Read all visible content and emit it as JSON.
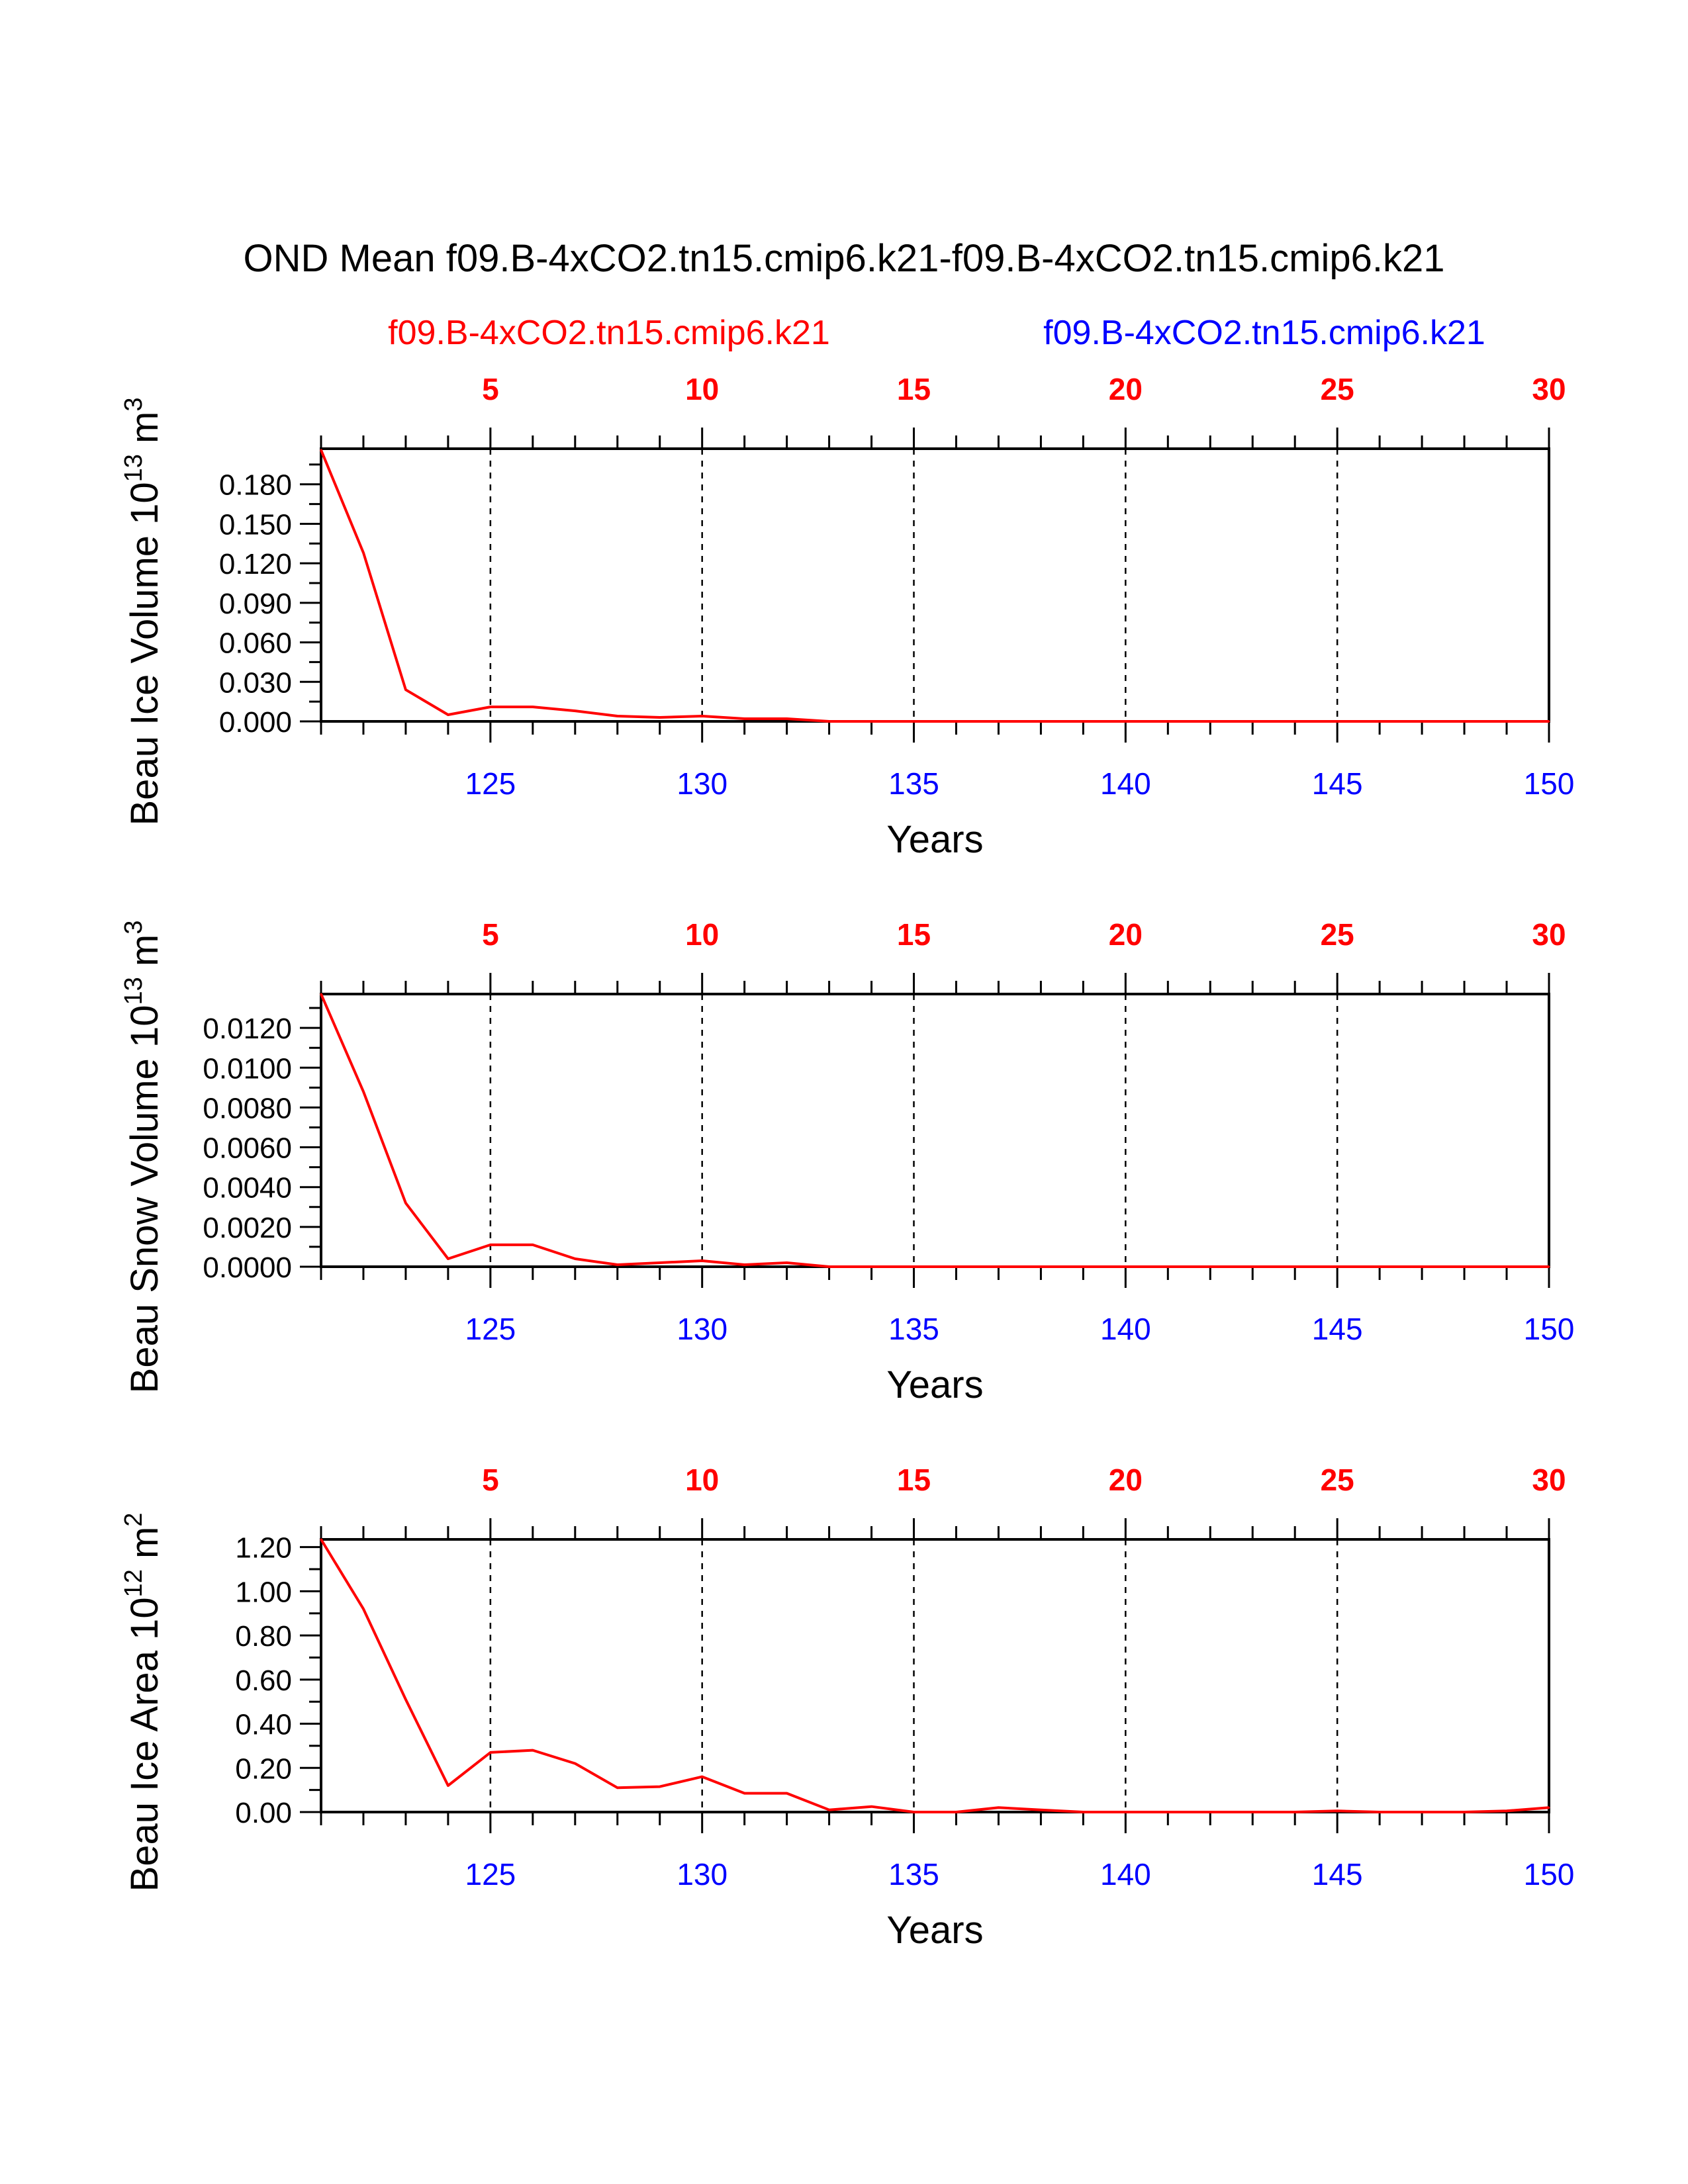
{
  "title": "OND Mean f09.B-4xCO2.tn15.cmip6.k21-f09.B-4xCO2.tn15.cmip6.k21",
  "legend": {
    "left": "f09.B-4xCO2.tn15.cmip6.k21",
    "right": "f09.B-4xCO2.tn15.cmip6.k21",
    "left_color": "#ff0000",
    "right_color": "#0000ff"
  },
  "colors": {
    "series": "#ff0000",
    "top_ticks": "#ff0000",
    "bottom_ticks": "#0000ff",
    "axes": "#000000"
  },
  "chart_data": [
    {
      "type": "line",
      "ylabel": "Beau Ice Volume 10",
      "ylabel_exp": "13",
      "ylabel_unit": " m",
      "ylabel_unit_exp": "3",
      "xlabel": "Years",
      "xlim": [
        121,
        150
      ],
      "ylim": [
        0,
        0.207
      ],
      "yticks": [
        "0.000",
        "0.030",
        "0.060",
        "0.090",
        "0.120",
        "0.150",
        "0.180"
      ],
      "ytick_values": [
        0,
        0.03,
        0.06,
        0.09,
        0.12,
        0.15,
        0.18
      ],
      "xticks_bottom": [
        "125",
        "130",
        "135",
        "140",
        "145",
        "150"
      ],
      "xticks_bottom_values": [
        125,
        130,
        135,
        140,
        145,
        150
      ],
      "xticks_top": [
        "5",
        "10",
        "15",
        "20",
        "25",
        "30"
      ],
      "x": [
        121,
        122,
        123,
        124,
        125,
        126,
        127,
        128,
        129,
        130,
        131,
        132,
        133,
        134,
        135,
        136,
        137,
        138,
        139,
        140,
        141,
        142,
        143,
        144,
        145,
        146,
        147,
        148,
        149,
        150
      ],
      "values": [
        0.206,
        0.128,
        0.024,
        0.005,
        0.011,
        0.011,
        0.008,
        0.004,
        0.003,
        0.004,
        0.002,
        0.002,
        0.0,
        0.0,
        0.0,
        0.0,
        0.0,
        0.0,
        0.0,
        0.0,
        0.0,
        0.0,
        0.0,
        0.0,
        0.0,
        0.0,
        0.0,
        0.0,
        0.0,
        0.0
      ]
    },
    {
      "type": "line",
      "ylabel": "Beau Snow Volume 10",
      "ylabel_exp": "13",
      "ylabel_unit": " m",
      "ylabel_unit_exp": "3",
      "xlabel": "Years",
      "xlim": [
        121,
        150
      ],
      "ylim": [
        0,
        0.0137
      ],
      "yticks": [
        "0.0000",
        "0.0020",
        "0.0040",
        "0.0060",
        "0.0080",
        "0.0100",
        "0.0120"
      ],
      "ytick_values": [
        0,
        0.002,
        0.004,
        0.006,
        0.008,
        0.01,
        0.012
      ],
      "xticks_bottom": [
        "125",
        "130",
        "135",
        "140",
        "145",
        "150"
      ],
      "xticks_bottom_values": [
        125,
        130,
        135,
        140,
        145,
        150
      ],
      "xticks_top": [
        "5",
        "10",
        "15",
        "20",
        "25",
        "30"
      ],
      "x": [
        121,
        122,
        123,
        124,
        125,
        126,
        127,
        128,
        129,
        130,
        131,
        132,
        133,
        134,
        135,
        136,
        137,
        138,
        139,
        140,
        141,
        142,
        143,
        144,
        145,
        146,
        147,
        148,
        149,
        150
      ],
      "values": [
        0.0137,
        0.0088,
        0.0032,
        0.0004,
        0.0011,
        0.0011,
        0.0004,
        0.0001,
        0.0002,
        0.0003,
        0.0001,
        0.0002,
        0.0,
        0.0,
        0.0,
        0.0,
        0.0,
        0.0,
        0.0,
        0.0,
        0.0,
        0.0,
        0.0,
        0.0,
        0.0,
        0.0,
        0.0,
        0.0,
        0.0,
        0.0
      ]
    },
    {
      "type": "line",
      "ylabel": "Beau Ice Area 10",
      "ylabel_exp": "12",
      "ylabel_unit": " m",
      "ylabel_unit_exp": "2",
      "xlabel": "Years",
      "xlim": [
        121,
        150
      ],
      "ylim": [
        0,
        1.235
      ],
      "yticks": [
        "0.00",
        "0.20",
        "0.40",
        "0.60",
        "0.80",
        "1.00",
        "1.20"
      ],
      "ytick_values": [
        0,
        0.2,
        0.4,
        0.6,
        0.8,
        1.0,
        1.2
      ],
      "xticks_bottom": [
        "125",
        "130",
        "135",
        "140",
        "145",
        "150"
      ],
      "xticks_bottom_values": [
        125,
        130,
        135,
        140,
        145,
        150
      ],
      "xticks_top": [
        "5",
        "10",
        "15",
        "20",
        "25",
        "30"
      ],
      "x": [
        121,
        122,
        123,
        124,
        125,
        126,
        127,
        128,
        129,
        130,
        131,
        132,
        133,
        134,
        135,
        136,
        137,
        138,
        139,
        140,
        141,
        142,
        143,
        144,
        145,
        146,
        147,
        148,
        149,
        150
      ],
      "values": [
        1.235,
        0.92,
        0.51,
        0.12,
        0.27,
        0.28,
        0.22,
        0.11,
        0.115,
        0.16,
        0.085,
        0.085,
        0.01,
        0.025,
        0.0,
        0.0,
        0.02,
        0.01,
        0.0,
        0.0,
        0.0,
        0.0,
        0.0,
        0.0,
        0.005,
        0.0,
        0.0,
        0.0,
        0.005,
        0.02
      ]
    }
  ]
}
